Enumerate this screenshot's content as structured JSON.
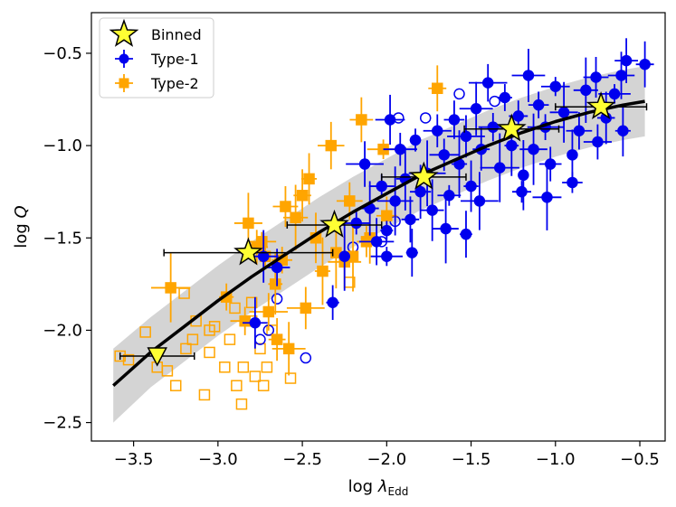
{
  "chart_data": {
    "type": "scatter",
    "xlabel": "log λEdd",
    "xlabel_main": "log ",
    "xlabel_symbol": "λ",
    "xlabel_sub": "Edd",
    "ylabel": "log Q",
    "ylabel_main": "log ",
    "ylabel_italic": "Q",
    "xlim": [
      -3.75,
      -0.35
    ],
    "ylim": [
      -2.6,
      -0.28
    ],
    "xticks": [
      -3.5,
      -3.0,
      -2.5,
      -2.0,
      -1.5,
      -1.0,
      -0.5
    ],
    "xtick_labels": [
      "−3.5",
      "−3.0",
      "−2.5",
      "−2.0",
      "−1.5",
      "−1.0",
      "−0.5"
    ],
    "yticks": [
      -2.5,
      -2.0,
      -1.5,
      -1.0,
      -0.5
    ],
    "ytick_labels": [
      "−2.5",
      "−2.0",
      "−1.5",
      "−1.0",
      "−0.5"
    ],
    "grid": false,
    "legend_position": "top-left",
    "legend": [
      {
        "label": "Binned",
        "marker": "star",
        "color": "#ffff33"
      },
      {
        "label": "Type-1",
        "marker": "circle",
        "color": "#0000ee"
      },
      {
        "label": "Type-2",
        "marker": "square",
        "color": "#ffa500"
      }
    ],
    "fit_curve": {
      "x": [
        -3.62,
        -3.4,
        -3.2,
        -3.0,
        -2.8,
        -2.6,
        -2.4,
        -2.2,
        -2.0,
        -1.8,
        -1.6,
        -1.4,
        -1.2,
        -1.0,
        -0.8,
        -0.6,
        -0.47
      ],
      "y": [
        -2.3,
        -2.12,
        -1.98,
        -1.84,
        -1.71,
        -1.59,
        -1.47,
        -1.36,
        -1.26,
        -1.16,
        -1.08,
        -1.0,
        -0.93,
        -0.87,
        -0.82,
        -0.78,
        -0.76
      ]
    },
    "band": {
      "x": [
        -3.62,
        -3.4,
        -3.2,
        -3.0,
        -2.8,
        -2.6,
        -2.4,
        -2.2,
        -2.0,
        -1.8,
        -1.6,
        -1.4,
        -1.2,
        -1.0,
        -0.8,
        -0.6,
        -0.47
      ],
      "upper": [
        -2.1,
        -1.93,
        -1.79,
        -1.65,
        -1.52,
        -1.4,
        -1.28,
        -1.17,
        -1.07,
        -0.97,
        -0.89,
        -0.81,
        -0.74,
        -0.68,
        -0.63,
        -0.59,
        -0.57
      ],
      "lower": [
        -2.5,
        -2.31,
        -2.17,
        -2.03,
        -1.9,
        -1.78,
        -1.66,
        -1.55,
        -1.45,
        -1.35,
        -1.27,
        -1.19,
        -1.12,
        -1.06,
        -1.01,
        -0.97,
        -0.95
      ]
    },
    "binned": [
      {
        "x": -3.36,
        "y": -2.14,
        "xerr": 0.22,
        "shape": "triangle"
      },
      {
        "x": -2.82,
        "y": -1.58,
        "xerr": 0.5,
        "shape": "star"
      },
      {
        "x": -2.31,
        "y": -1.43,
        "xerr": 0.28,
        "shape": "star"
      },
      {
        "x": -1.78,
        "y": -1.17,
        "xerr": 0.25,
        "shape": "star"
      },
      {
        "x": -1.26,
        "y": -0.91,
        "xerr": 0.28,
        "shape": "star"
      },
      {
        "x": -0.73,
        "y": -0.79,
        "xerr": 0.27,
        "shape": "star"
      }
    ],
    "type1_filled": [
      {
        "x": -0.47,
        "y": -0.56
      },
      {
        "x": -0.58,
        "y": -0.54
      },
      {
        "x": -0.61,
        "y": -0.62
      },
      {
        "x": -0.65,
        "y": -0.72
      },
      {
        "x": -0.6,
        "y": -0.92
      },
      {
        "x": -0.7,
        "y": -0.85
      },
      {
        "x": -0.76,
        "y": -0.63
      },
      {
        "x": -0.82,
        "y": -0.7
      },
      {
        "x": -0.86,
        "y": -0.92
      },
      {
        "x": -0.9,
        "y": -1.05
      },
      {
        "x": -0.95,
        "y": -0.82
      },
      {
        "x": -1.0,
        "y": -0.68
      },
      {
        "x": -1.03,
        "y": -1.1
      },
      {
        "x": -1.06,
        "y": -0.9
      },
      {
        "x": -1.1,
        "y": -0.78
      },
      {
        "x": -1.13,
        "y": -1.02
      },
      {
        "x": -1.16,
        "y": -0.62
      },
      {
        "x": -1.19,
        "y": -1.16
      },
      {
        "x": -1.22,
        "y": -0.84
      },
      {
        "x": -1.26,
        "y": -1.0
      },
      {
        "x": -1.3,
        "y": -0.74
      },
      {
        "x": -1.33,
        "y": -1.12
      },
      {
        "x": -1.37,
        "y": -0.9
      },
      {
        "x": -1.4,
        "y": -0.66
      },
      {
        "x": -1.44,
        "y": -1.02
      },
      {
        "x": -1.47,
        "y": -0.8
      },
      {
        "x": -1.5,
        "y": -1.22
      },
      {
        "x": -1.53,
        "y": -0.95
      },
      {
        "x": -1.57,
        "y": -1.1
      },
      {
        "x": -1.6,
        "y": -0.86
      },
      {
        "x": -1.63,
        "y": -1.27
      },
      {
        "x": -1.66,
        "y": -1.05
      },
      {
        "x": -1.7,
        "y": -0.92
      },
      {
        "x": -1.73,
        "y": -1.35
      },
      {
        "x": -1.76,
        "y": -1.15
      },
      {
        "x": -1.8,
        "y": -1.25
      },
      {
        "x": -1.83,
        "y": -0.97
      },
      {
        "x": -1.86,
        "y": -1.4
      },
      {
        "x": -1.89,
        "y": -1.18
      },
      {
        "x": -1.92,
        "y": -1.02
      },
      {
        "x": -1.95,
        "y": -1.3
      },
      {
        "x": -1.98,
        "y": -0.86
      },
      {
        "x": -2.0,
        "y": -1.46
      },
      {
        "x": -2.03,
        "y": -1.22
      },
      {
        "x": -2.06,
        "y": -1.52
      },
      {
        "x": -2.1,
        "y": -1.34
      },
      {
        "x": -2.13,
        "y": -1.1
      },
      {
        "x": -2.18,
        "y": -1.42
      },
      {
        "x": -2.25,
        "y": -1.6
      },
      {
        "x": -2.32,
        "y": -1.85
      },
      {
        "x": -2.65,
        "y": -1.66
      },
      {
        "x": -2.73,
        "y": -1.6
      },
      {
        "x": -2.78,
        "y": -1.96
      },
      {
        "x": -1.53,
        "y": -1.48
      },
      {
        "x": -1.45,
        "y": -1.3
      },
      {
        "x": -1.2,
        "y": -1.25
      },
      {
        "x": -0.9,
        "y": -1.2
      },
      {
        "x": -1.05,
        "y": -1.28
      },
      {
        "x": -0.75,
        "y": -0.98
      },
      {
        "x": -1.65,
        "y": -1.45
      },
      {
        "x": -2.0,
        "y": -1.6
      },
      {
        "x": -1.85,
        "y": -1.58
      }
    ],
    "type1_open": [
      {
        "x": -1.93,
        "y": -0.85
      },
      {
        "x": -1.77,
        "y": -0.85
      },
      {
        "x": -1.36,
        "y": -0.76
      },
      {
        "x": -1.57,
        "y": -0.72
      },
      {
        "x": -2.03,
        "y": -1.52
      },
      {
        "x": -2.2,
        "y": -1.55
      },
      {
        "x": -2.25,
        "y": -1.6
      },
      {
        "x": -2.65,
        "y": -1.83
      },
      {
        "x": -2.7,
        "y": -2.0
      },
      {
        "x": -2.75,
        "y": -2.05
      },
      {
        "x": -2.48,
        "y": -2.15
      },
      {
        "x": -1.95,
        "y": -1.41
      }
    ],
    "type2_filled": [
      {
        "x": -1.7,
        "y": -0.69
      },
      {
        "x": -2.15,
        "y": -0.86
      },
      {
        "x": -2.33,
        "y": -1.0
      },
      {
        "x": -2.02,
        "y": -1.02
      },
      {
        "x": -2.46,
        "y": -1.18
      },
      {
        "x": -2.5,
        "y": -1.27
      },
      {
        "x": -2.6,
        "y": -1.33
      },
      {
        "x": -2.54,
        "y": -1.39
      },
      {
        "x": -2.22,
        "y": -1.3
      },
      {
        "x": -2.42,
        "y": -1.5
      },
      {
        "x": -2.82,
        "y": -1.42
      },
      {
        "x": -2.74,
        "y": -1.52
      },
      {
        "x": -2.77,
        "y": -1.55
      },
      {
        "x": -2.72,
        "y": -1.6
      },
      {
        "x": -2.62,
        "y": -1.62
      },
      {
        "x": -2.3,
        "y": -1.58
      },
      {
        "x": -2.25,
        "y": -1.63
      },
      {
        "x": -2.2,
        "y": -1.6
      },
      {
        "x": -2.12,
        "y": -1.52
      },
      {
        "x": -2.66,
        "y": -1.75
      },
      {
        "x": -2.95,
        "y": -1.82
      },
      {
        "x": -3.28,
        "y": -1.77
      },
      {
        "x": -2.84,
        "y": -1.95
      },
      {
        "x": -2.7,
        "y": -1.9
      },
      {
        "x": -2.65,
        "y": -2.05
      },
      {
        "x": -2.58,
        "y": -2.1
      },
      {
        "x": -2.1,
        "y": -1.5
      },
      {
        "x": -2.48,
        "y": -1.88
      },
      {
        "x": -2.38,
        "y": -1.68
      },
      {
        "x": -2.0,
        "y": -1.38
      }
    ],
    "type2_open": [
      {
        "x": -3.58,
        "y": -2.14
      },
      {
        "x": -3.53,
        "y": -2.16
      },
      {
        "x": -3.43,
        "y": -2.01
      },
      {
        "x": -3.36,
        "y": -2.2
      },
      {
        "x": -3.3,
        "y": -2.22
      },
      {
        "x": -3.25,
        "y": -2.3
      },
      {
        "x": -3.19,
        "y": -2.1
      },
      {
        "x": -3.15,
        "y": -2.05
      },
      {
        "x": -3.13,
        "y": -1.95
      },
      {
        "x": -3.2,
        "y": -1.8
      },
      {
        "x": -3.08,
        "y": -2.35
      },
      {
        "x": -3.05,
        "y": -2.0
      },
      {
        "x": -3.02,
        "y": -1.98
      },
      {
        "x": -2.96,
        "y": -2.2
      },
      {
        "x": -2.93,
        "y": -2.05
      },
      {
        "x": -2.89,
        "y": -2.3
      },
      {
        "x": -2.86,
        "y": -2.4
      },
      {
        "x": -2.85,
        "y": -2.2
      },
      {
        "x": -2.8,
        "y": -1.95
      },
      {
        "x": -2.78,
        "y": -2.25
      },
      {
        "x": -2.75,
        "y": -2.1
      },
      {
        "x": -2.73,
        "y": -2.3
      },
      {
        "x": -2.71,
        "y": -2.2
      },
      {
        "x": -2.8,
        "y": -1.85
      },
      {
        "x": -2.68,
        "y": -2.0
      },
      {
        "x": -2.9,
        "y": -1.88
      },
      {
        "x": -2.22,
        "y": -1.74
      },
      {
        "x": -2.57,
        "y": -2.26
      },
      {
        "x": -3.05,
        "y": -2.12
      }
    ]
  }
}
